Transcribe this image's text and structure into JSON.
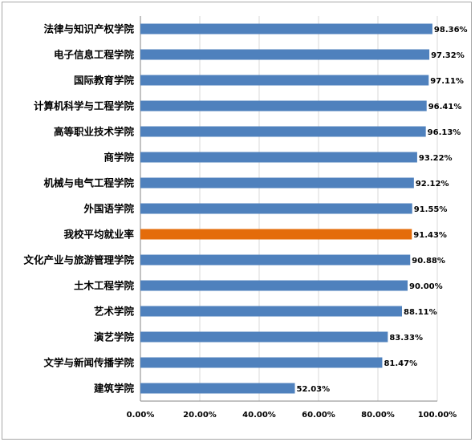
{
  "chart_data": {
    "type": "bar",
    "orientation": "horizontal",
    "categories": [
      "法律与知识产权学院",
      "电子信息工程学院",
      "国际教育学院",
      "计算机科学与工程学院",
      "高等职业技术学院",
      "商学院",
      "机械与电气工程学院",
      "外国语学院",
      "我校平均就业率",
      "文化产业与旅游管理学院",
      "土木工程学院",
      "艺术学院",
      "演艺学院",
      "文学与新闻传播学院",
      "建筑学院"
    ],
    "values": [
      98.36,
      97.32,
      97.11,
      96.41,
      96.13,
      93.22,
      92.12,
      91.55,
      91.43,
      90.88,
      90.0,
      88.11,
      83.33,
      81.47,
      52.03
    ],
    "value_labels": [
      "98.36%",
      "97.32%",
      "97.11%",
      "96.41%",
      "96.13%",
      "93.22%",
      "92.12%",
      "91.55%",
      "91.43%",
      "90.88%",
      "90.00%",
      "88.11%",
      "83.33%",
      "81.47%",
      "52.03%"
    ],
    "highlight_index": 8,
    "x_ticks": [
      "0.00%",
      "20.00%",
      "40.00%",
      "60.00%",
      "80.00%",
      "100.00%"
    ],
    "xlim": [
      0,
      100
    ],
    "grid": "vertical",
    "colors": {
      "bar": "#4f81bd",
      "highlight": "#e46c0a",
      "grid": "#d9d9d9"
    }
  }
}
